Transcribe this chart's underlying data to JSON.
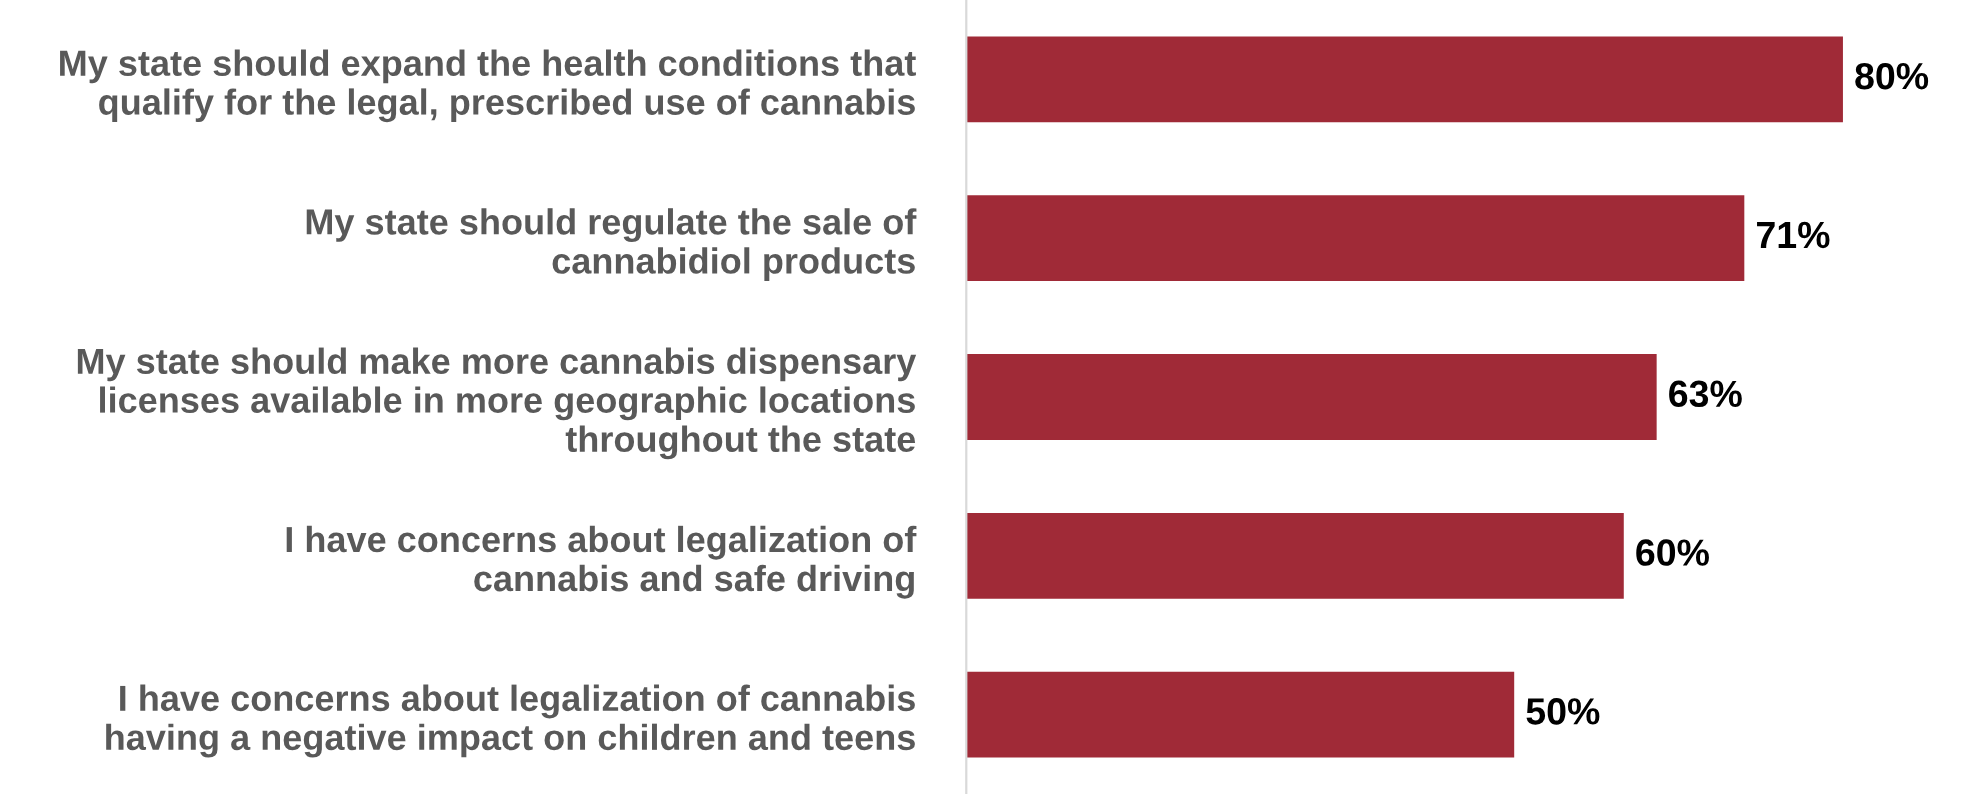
{
  "chart_data": {
    "type": "bar",
    "orientation": "horizontal",
    "categories": [
      "My state should expand the health conditions that\nqualify for the legal, prescribed use of cannabis",
      "My state should regulate the sale of\ncannabidiol products",
      "My state should make more cannabis dispensary\nlicenses available in more geographic locations\nthroughout the state",
      "I have concerns about legalization of\ncannabis and safe driving",
      "I have concerns about legalization of cannabis\nhaving a negative impact on children and teens"
    ],
    "values": [
      80,
      71,
      63,
      60,
      50
    ],
    "value_labels": [
      "80%",
      "71%",
      "63%",
      "60%",
      "50%"
    ],
    "color": "#a02a37",
    "grid": false,
    "legend": false,
    "tick_labels": "y"
  }
}
